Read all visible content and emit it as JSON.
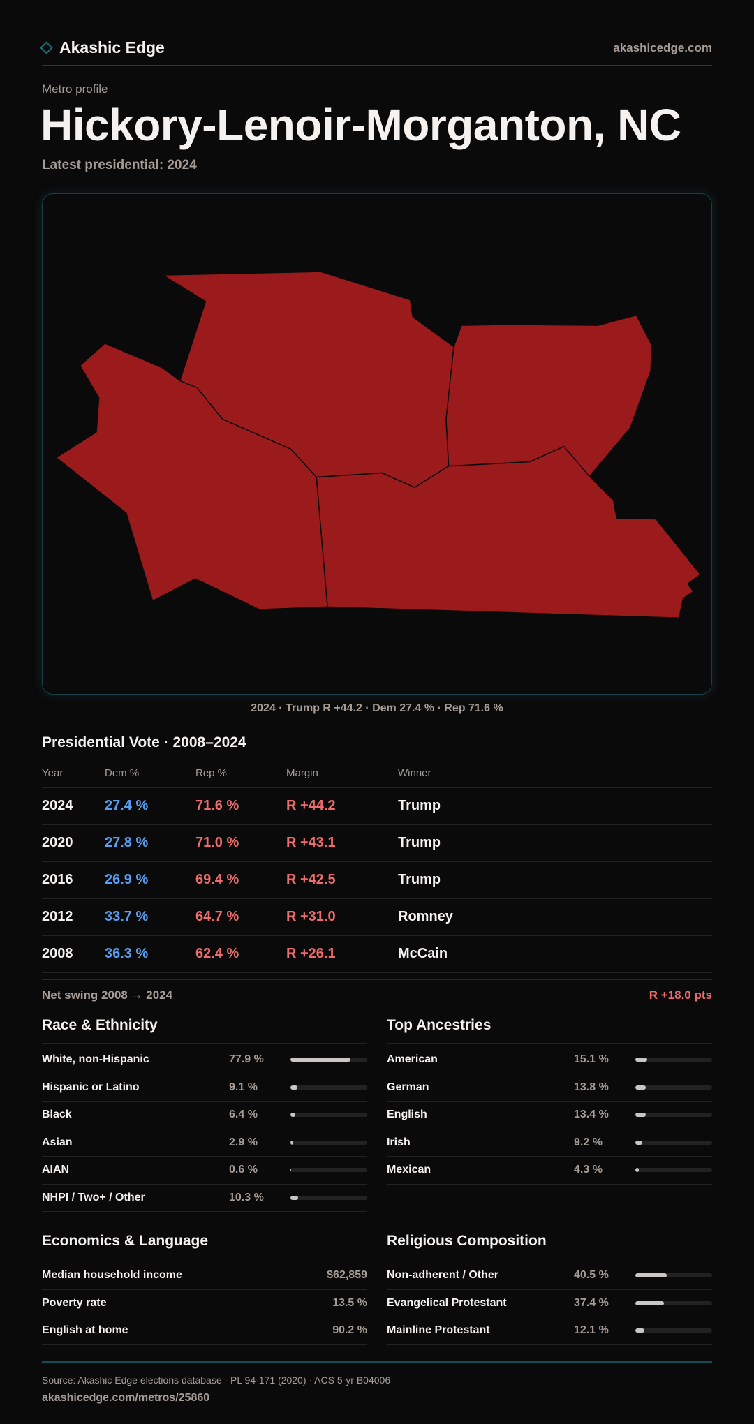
{
  "header": {
    "brand": "Akashic Edge",
    "site": "akashicedge.com"
  },
  "page": {
    "kicker": "Metro profile",
    "title": "Hickory-Lenoir-Morganton, NC",
    "subtitle": "Latest presidential: 2024"
  },
  "map": {
    "fill_color": "#9b1b1c",
    "caption": "2024 · Trump R +44.2 · Dem 27.4 % · Rep 71.6 %"
  },
  "presidential": {
    "title": "Presidential Vote · 2008–2024",
    "columns": [
      "Year",
      "Dem %",
      "Rep %",
      "Margin",
      "Winner"
    ],
    "rows": [
      {
        "year": "2024",
        "dem": "27.4 %",
        "rep": "71.6 %",
        "margin": "R +44.2",
        "winner": "Trump"
      },
      {
        "year": "2020",
        "dem": "27.8 %",
        "rep": "71.0 %",
        "margin": "R +43.1",
        "winner": "Trump"
      },
      {
        "year": "2016",
        "dem": "26.9 %",
        "rep": "69.4 %",
        "margin": "R +42.5",
        "winner": "Trump"
      },
      {
        "year": "2012",
        "dem": "33.7 %",
        "rep": "64.7 %",
        "margin": "R +31.0",
        "winner": "Romney"
      },
      {
        "year": "2008",
        "dem": "36.3 %",
        "rep": "62.4 %",
        "margin": "R +26.1",
        "winner": "McCain"
      }
    ],
    "swing_label": "Net swing 2008 → 2024",
    "swing_value": "R +18.0 pts"
  },
  "race": {
    "title": "Race & Ethnicity",
    "items": [
      {
        "label": "White, non-Hispanic",
        "value": "77.9 %",
        "pct": 77.9
      },
      {
        "label": "Hispanic or Latino",
        "value": "9.1 %",
        "pct": 9.1
      },
      {
        "label": "Black",
        "value": "6.4 %",
        "pct": 6.4
      },
      {
        "label": "Asian",
        "value": "2.9 %",
        "pct": 2.9
      },
      {
        "label": "AIAN",
        "value": "0.6 %",
        "pct": 0.6
      },
      {
        "label": "NHPI / Two+ / Other",
        "value": "10.3 %",
        "pct": 10.3
      }
    ]
  },
  "ancestry": {
    "title": "Top Ancestries",
    "items": [
      {
        "label": "American",
        "value": "15.1 %",
        "pct": 15.1
      },
      {
        "label": "German",
        "value": "13.8 %",
        "pct": 13.8
      },
      {
        "label": "English",
        "value": "13.4 %",
        "pct": 13.4
      },
      {
        "label": "Irish",
        "value": "9.2 %",
        "pct": 9.2
      },
      {
        "label": "Mexican",
        "value": "4.3 %",
        "pct": 4.3
      }
    ]
  },
  "economics": {
    "title": "Economics & Language",
    "items": [
      {
        "label": "Median household income",
        "value": "$62,859"
      },
      {
        "label": "Poverty rate",
        "value": "13.5 %"
      },
      {
        "label": "English at home",
        "value": "90.2 %"
      }
    ]
  },
  "religion": {
    "title": "Religious Composition",
    "items": [
      {
        "label": "Non-adherent / Other",
        "value": "40.5 %",
        "pct": 40.5
      },
      {
        "label": "Evangelical Protestant",
        "value": "37.4 %",
        "pct": 37.4
      },
      {
        "label": "Mainline Protestant",
        "value": "12.1 %",
        "pct": 12.1
      }
    ]
  },
  "footer": {
    "source": "Source: Akashic Edge elections database · PL 94-171 (2020) · ACS 5-yr B04006",
    "url": "akashicedge.com/metros/25860"
  }
}
